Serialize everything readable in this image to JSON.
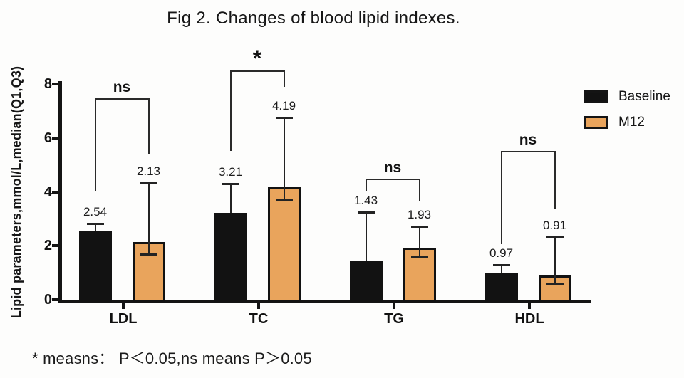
{
  "figure": {
    "footnote": "* measns： P＜0.05,ns means P＞0.05"
  },
  "chart_data": {
    "type": "bar",
    "title": "Fig 2. Changes of blood lipid indexes.",
    "ylabel": "Lipid parameters,mmol/L,median(Q1,Q3)",
    "ylim": [
      0,
      8
    ],
    "yticks": [
      0,
      2,
      4,
      6,
      8
    ],
    "categories": [
      "LDL",
      "TC",
      "TG",
      "HDL"
    ],
    "grid": false,
    "legend_position": "right",
    "series": [
      {
        "name": "Baseline",
        "color": "#121212",
        "values": [
          2.54,
          3.21,
          1.43,
          0.97
        ],
        "labels": [
          "2.54",
          "3.21",
          "1.43",
          "0.97"
        ],
        "whisker_high": [
          2.83,
          4.3,
          3.25,
          1.3
        ],
        "whisker_low": [
          null,
          null,
          null,
          null
        ]
      },
      {
        "name": "M12",
        "color": "#E9A45C",
        "values": [
          2.13,
          4.19,
          1.93,
          0.91
        ],
        "labels": [
          "2.13",
          "4.19",
          "1.93",
          "0.91"
        ],
        "whisker_high": [
          4.33,
          6.77,
          2.72,
          2.33
        ],
        "whisker_low": [
          1.69,
          3.73,
          1.61,
          0.61
        ]
      }
    ],
    "significance": [
      {
        "category": "LDL",
        "label": "ns",
        "top": 7.45,
        "left_end": 4.05,
        "right_end": 5.4
      },
      {
        "category": "TC",
        "label": "*",
        "top": 8.48,
        "left_end": 5.52,
        "right_end": 7.9
      },
      {
        "category": "TG",
        "label": "ns",
        "top": 4.46,
        "left_end": 4.04,
        "right_end": 3.67
      },
      {
        "category": "HDL",
        "label": "ns",
        "top": 5.49,
        "left_end": 2.06,
        "right_end": 3.38
      }
    ],
    "legend": [
      {
        "label": "Baseline",
        "color": "#121212"
      },
      {
        "label": "M12",
        "color": "#E9A45C"
      }
    ]
  }
}
